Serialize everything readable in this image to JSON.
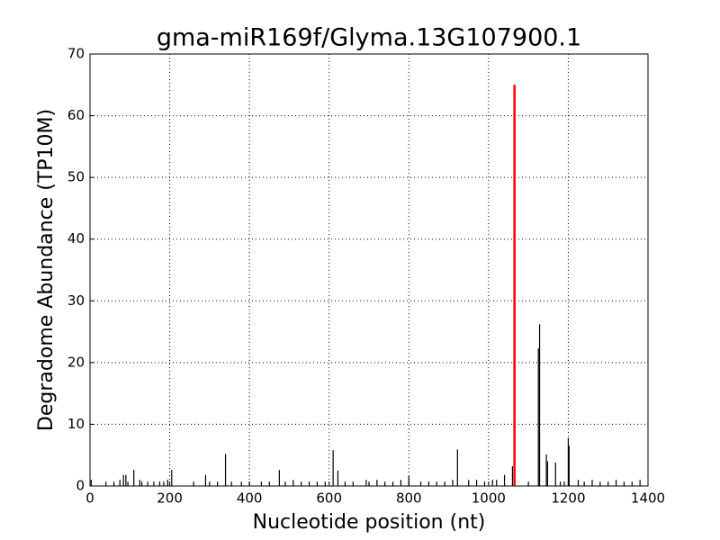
{
  "chart_data": {
    "type": "spike",
    "title": "gma-miR169f/Glyma.13G107900.1",
    "x_label": "Nucleotide position (nt)",
    "y_label": "Degradome Abundance (TP10M)",
    "xlim": [
      0,
      1400
    ],
    "ylim": [
      0,
      70
    ],
    "xticks": [
      0,
      200,
      400,
      600,
      800,
      1000,
      1200,
      1400
    ],
    "yticks": [
      0,
      10,
      20,
      30,
      40,
      50,
      60,
      70
    ],
    "grid": true,
    "series": [
      {
        "color": "#000000",
        "x": [
          3,
          40,
          60,
          75,
          84,
          90,
          95,
          110,
          125,
          130,
          145,
          160,
          175,
          185,
          195,
          205,
          260,
          290,
          300,
          320,
          340,
          355,
          380,
          400,
          430,
          450,
          475,
          490,
          510,
          530,
          550,
          570,
          590,
          610,
          622,
          640,
          660,
          693,
          700,
          720,
          740,
          760,
          780,
          800,
          830,
          850,
          870,
          890,
          910,
          922,
          950,
          970,
          990,
          1010,
          1020,
          1040,
          1060,
          1100,
          1125,
          1128,
          1145,
          1148,
          1168,
          1180,
          1190,
          1200,
          1202,
          1225,
          1240,
          1260,
          1280,
          1300,
          1320,
          1340,
          1360,
          1380
        ],
        "values": [
          1,
          0.7,
          0.7,
          1,
          1.8,
          1.8,
          0.7,
          2.6,
          1,
          0.7,
          0.7,
          0.7,
          0.7,
          0.7,
          1,
          2.6,
          0.7,
          1.8,
          0.7,
          0.7,
          5.2,
          0.7,
          0.7,
          0.7,
          0.7,
          0.7,
          2.6,
          0.7,
          1,
          0.7,
          0.7,
          0.7,
          0.7,
          5.8,
          2.5,
          0.7,
          0.7,
          1,
          0.7,
          1,
          0.7,
          0.7,
          1,
          1.6,
          0.7,
          0.7,
          0.7,
          0.7,
          1,
          5.9,
          1,
          1,
          0.7,
          1,
          1,
          1.8,
          3.2,
          0.7,
          22.3,
          26.2,
          5.1,
          4,
          3.8,
          0.7,
          0.7,
          7.8,
          6.5,
          1,
          0.7,
          1,
          0.7,
          0.7,
          1,
          0.7,
          0.7,
          1
        ]
      },
      {
        "color": "#ff0000",
        "x": [
          1065
        ],
        "values": [
          65
        ]
      }
    ]
  }
}
